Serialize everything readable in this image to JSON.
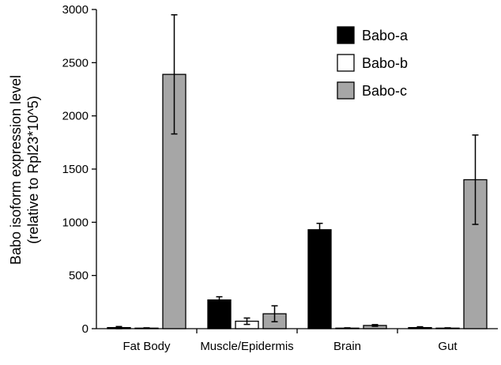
{
  "chart_data": {
    "type": "bar",
    "title": "",
    "xlabel": "",
    "ylabel": "Babo isoform expression level",
    "ylabel_sub": "(relative to Rpl23*10^5)",
    "ylim": [
      0,
      3000
    ],
    "yticks": [
      0,
      500,
      1000,
      1500,
      2000,
      2500,
      3000
    ],
    "grid": false,
    "legend_position": "top-right",
    "categories": [
      "Fat Body",
      "Muscle/Epidermis",
      "Brain",
      "Gut"
    ],
    "series": [
      {
        "name": "Babo-a",
        "color": "#000000",
        "values": [
          10,
          270,
          930,
          10
        ],
        "errors": [
          10,
          30,
          60,
          8
        ]
      },
      {
        "name": "Babo-b",
        "color": "#ffffff",
        "values": [
          5,
          70,
          5,
          5
        ],
        "errors": [
          3,
          30,
          3,
          3
        ]
      },
      {
        "name": "Babo-c",
        "color": "#a6a6a6",
        "values": [
          2390,
          140,
          30,
          1400
        ],
        "errors": [
          560,
          75,
          8,
          420
        ]
      }
    ]
  }
}
